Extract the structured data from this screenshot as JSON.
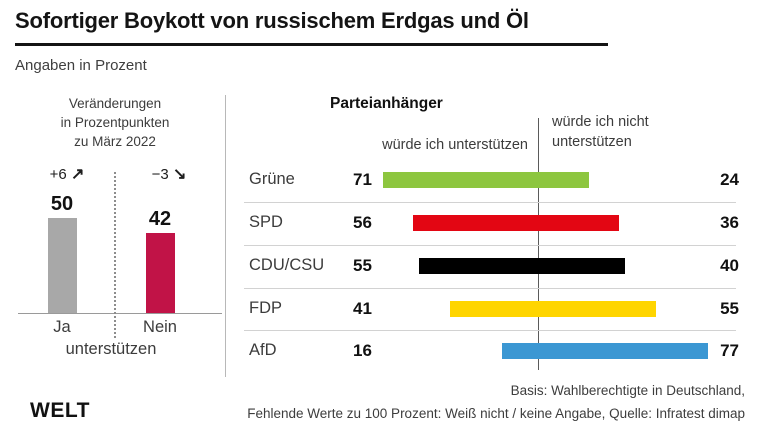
{
  "header": {
    "title": "Sofortiger Boykott von russischem Erdgas und Öl",
    "subtitle": "Angaben in Prozent"
  },
  "chart_data": [
    {
      "type": "bar",
      "title": "Veränderungen in Prozentpunkten zu März 2022",
      "title_lines": [
        "Veränderungen",
        "in Prozentpunkten",
        "zu März 2022"
      ],
      "categories": [
        "Ja",
        "Nein"
      ],
      "shared_label": "unterstützen",
      "values": [
        50,
        42
      ],
      "changes": [
        "+6",
        "−3"
      ],
      "trend_glyphs": [
        "↗",
        "↘"
      ],
      "colors": [
        "#a8a8a8",
        "#c11347"
      ],
      "ylim": [
        0,
        55
      ],
      "unit": "Prozent"
    },
    {
      "type": "bar",
      "variant": "sliding-fixed-length",
      "title": "Parteianhänger",
      "categories": [
        "Grüne",
        "SPD",
        "CDU/CSU",
        "FDP",
        "AfD"
      ],
      "series": [
        {
          "name": "würde ich unterstützen",
          "values": [
            71,
            56,
            55,
            41,
            16
          ]
        },
        {
          "name": "würde ich nicht unterstützen",
          "values": [
            24,
            36,
            40,
            55,
            77
          ]
        }
      ],
      "bar_colors": [
        "#8dc63f",
        "#e30613",
        "#000000",
        "#ffd500",
        "#3b97d3"
      ],
      "unit": "Prozent"
    }
  ],
  "footer": {
    "lines": [
      "Basis: Wahlberechtigte in Deutschland,",
      "Fehlende Werte zu 100 Prozent: Weiß nicht / keine Angabe, Quelle: Infratest dimap"
    ],
    "logo": "WELT"
  }
}
